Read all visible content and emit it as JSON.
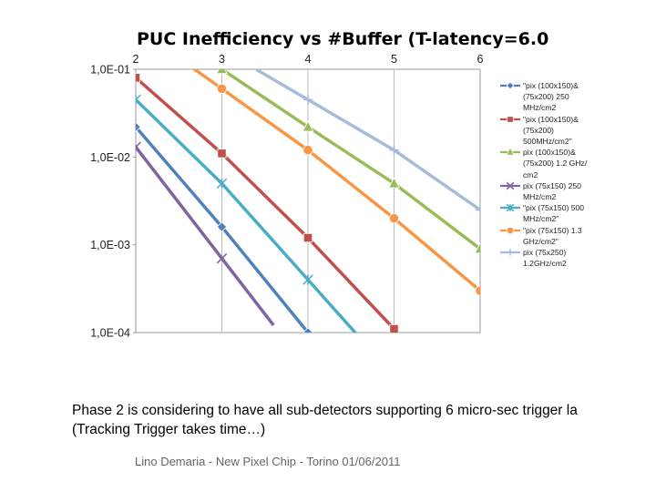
{
  "title": "PUC Inefficiency vs #Buffer (T-latency=6.0",
  "caption": {
    "line1": "Phase 2 is considering to have all sub-detectors supporting 6 micro-sec trigger la",
    "line2": "(Tracking Trigger takes time…)"
  },
  "footer": "Lino Demaria - New Pixel Chip -  Torino 01/06/2011",
  "chart_data": {
    "type": "line",
    "title": "PUC Inefficiency vs #Buffer (T-latency=6.0",
    "xlabel": "",
    "ylabel": "",
    "x_ticks": [
      "2",
      "3",
      "4",
      "5",
      "6"
    ],
    "y_ticks": [
      "1,0E-01",
      "1,0E-02",
      "1,0E-03",
      "1,0E-04"
    ],
    "xlim": [
      2,
      6
    ],
    "ylim": [
      0.0001,
      0.1
    ],
    "y_scale": "log",
    "grid": "vertical",
    "legend_position": "right",
    "series": [
      {
        "name": "\"pix (100x150)&\n(75x200)   250\nMHz/cm2",
        "color": "#4F81BD",
        "marker": "diamond",
        "x": [
          2,
          3,
          4
        ],
        "y": [
          0.022,
          0.0016,
          0.0001
        ]
      },
      {
        "name": "\"pix (100x150)&\n(75x200)\n500MHz/cm2\"",
        "color": "#C0504D",
        "marker": "square",
        "x": [
          2,
          3,
          4,
          5
        ],
        "y": [
          0.08,
          0.011,
          0.0012,
          0.00011
        ]
      },
      {
        "name": "pix (100x150)&\n(75x200) 1.2 GHz/\ncm2",
        "color": "#9BBB59",
        "marker": "triangle",
        "x": [
          3,
          4,
          5,
          6
        ],
        "y": [
          0.1,
          0.022,
          0.005,
          0.0009
        ]
      },
      {
        "name": "pix (75x150) 250\nMHz/cm2",
        "color": "#8064A2",
        "marker": "x",
        "x": [
          2,
          3
        ],
        "y": [
          0.013,
          0.0007
        ]
      },
      {
        "name": "\"pix (75x150) 500\nMHz/cm2\"",
        "color": "#4BACC6",
        "marker": "star",
        "x": [
          2,
          3,
          4
        ],
        "y": [
          0.045,
          0.005,
          0.0004
        ]
      },
      {
        "name": "\"pix (75x150) 1.3\nGHz/cm2\"",
        "color": "#F79646",
        "marker": "circle",
        "x": [
          3,
          4,
          5,
          6
        ],
        "y": [
          0.06,
          0.012,
          0.002,
          0.0003
        ]
      },
      {
        "name": "pix (75x250)\n1.2GHz/cm2",
        "color": "#A6BCDA",
        "marker": "plus",
        "x": [
          4,
          5,
          6
        ],
        "y": [
          0.045,
          0.012,
          0.0025
        ]
      }
    ]
  }
}
